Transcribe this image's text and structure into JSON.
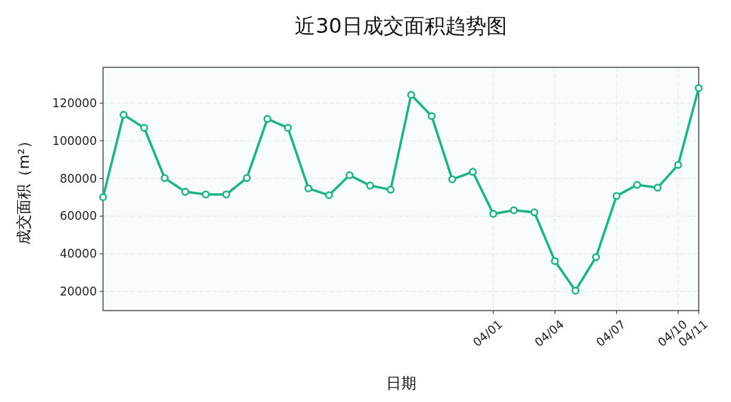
{
  "chart_data": {
    "type": "line",
    "title": "近30日成交面积趋势图",
    "xlabel": "日期",
    "ylabel": "成交面积（m²）",
    "x": [
      "--03-13",
      "--03-14",
      "--03-15",
      "--03-16",
      "--03-17",
      "--03-18",
      "--03-19",
      "--03-20",
      "--03-21",
      "--03-22",
      "--03-23",
      "--03-24",
      "--03-25",
      "--03-26",
      "--03-27",
      "--03-28",
      "--03-29",
      "--03-30",
      "--03-31",
      "--04-01",
      "--04-02",
      "--04-03",
      "--04-04",
      "--04-05",
      "--04-06",
      "--04-07",
      "--04-08",
      "--04-09",
      "--04-10",
      "--04-11"
    ],
    "series": [
      {
        "color": "#1db386",
        "values": [
          70000,
          113800,
          106900,
          80200,
          72900,
          71500,
          71500,
          80200,
          111600,
          106900,
          74700,
          71100,
          81700,
          76200,
          74000,
          124400,
          113100,
          79500,
          83500,
          61200,
          63100,
          62000,
          36100,
          20400,
          38200,
          70700,
          76600,
          75100,
          87200,
          128000
        ]
      }
    ],
    "xlim": [
      "--03-13",
      "--04-11"
    ],
    "xticks": [
      {
        "value": "--04-01",
        "label": "04/01"
      },
      {
        "value": "--04-04",
        "label": "04/04"
      },
      {
        "value": "--04-07",
        "label": "04/07"
      },
      {
        "value": "--04-10",
        "label": "04/10"
      },
      {
        "value": "--04-11",
        "label": "04/11"
      }
    ],
    "ylim": [
      9800,
      139000
    ],
    "yticks": [
      20000,
      40000,
      60000,
      80000,
      100000,
      120000
    ],
    "grid": true,
    "marker": "circle",
    "line_style": "solid"
  }
}
